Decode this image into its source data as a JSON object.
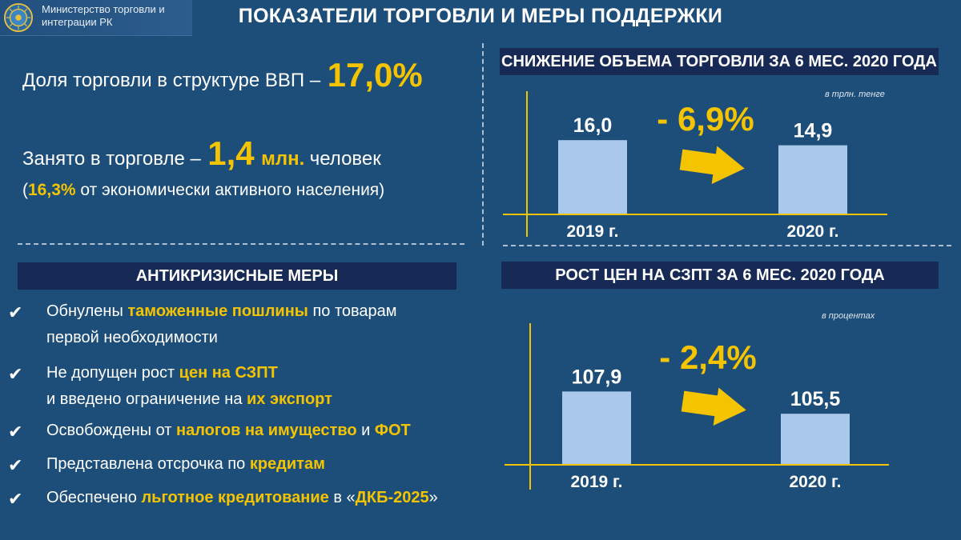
{
  "header": {
    "ministry": [
      "Министерство торговли и",
      "интеграции РК"
    ],
    "title": "ПОКАЗАТЕЛИ ТОРГОВЛИ И МЕРЫ ПОДДЕРЖКИ"
  },
  "stats": {
    "share_label": "Доля торговли в структуре ВВП –",
    "share_value": "17,0%",
    "employed_label": "Занято в торговле –",
    "employed_value": "1,4",
    "employed_unit": "млн.",
    "employed_suffix": "человек",
    "employed_sub_open": "(",
    "employed_sub_pct": "16,3%",
    "employed_sub_rest": "от экономически активного населения)"
  },
  "measures": {
    "title": "АНТИКРИЗИСНЫЕ МЕРЫ",
    "check_glyph": "✔",
    "items": [
      {
        "lines": [
          [
            {
              "t": "Обнулены ",
              "hl": false
            },
            {
              "t": "таможенные пошлины",
              "hl": true
            },
            {
              "t": " по товарам",
              "hl": false
            }
          ],
          [
            {
              "t": "первой необходимости",
              "hl": false
            }
          ]
        ]
      },
      {
        "lines": [
          [
            {
              "t": "Не допущен рост ",
              "hl": false
            },
            {
              "t": "цен на СЗПТ",
              "hl": true
            }
          ],
          [
            {
              "t": "и введено ограничение на ",
              "hl": false
            },
            {
              "t": "их экспорт",
              "hl": true
            }
          ]
        ]
      },
      {
        "lines": [
          [
            {
              "t": "Освобождены от ",
              "hl": false
            },
            {
              "t": "налогов на имущество",
              "hl": true
            },
            {
              "t": " и ",
              "hl": false
            },
            {
              "t": "ФОТ",
              "hl": true
            }
          ]
        ]
      },
      {
        "lines": [
          [
            {
              "t": "Представлена отсрочка по ",
              "hl": false
            },
            {
              "t": "кредитам",
              "hl": true
            }
          ]
        ]
      },
      {
        "lines": [
          [
            {
              "t": "Обеспечено ",
              "hl": false
            },
            {
              "t": "льготное кредитование",
              "hl": true
            },
            {
              "t": " в «",
              "hl": false
            },
            {
              "t": "ДКБ-2025",
              "hl": true
            },
            {
              "t": "»",
              "hl": false
            }
          ]
        ]
      }
    ]
  },
  "colors": {
    "background": "#1d4e7a",
    "accent": "#f5c400",
    "bar": "#a9c8ea",
    "title_bar": "#162a55"
  },
  "chart_data": [
    {
      "type": "bar",
      "title": "СНИЖЕНИЕ ОБЪЕМА ТОРГОВЛИ ЗА 6 МЕС. 2020 ГОДА",
      "unit_note": "в трлн. тенге",
      "categories": [
        "2019 г.",
        "2020 г."
      ],
      "values": [
        16.0,
        14.9
      ],
      "value_labels": [
        "16,0",
        "14,9"
      ],
      "change_label": "- 6,9%",
      "ylim": [
        0,
        20
      ]
    },
    {
      "type": "bar",
      "title": "РОСТ ЦЕН НА СЗПТ ЗА 6 МЕС. 2020 ГОДА",
      "unit_note": "в процентах",
      "categories": [
        "2019 г.",
        "2020 г."
      ],
      "values": [
        107.9,
        105.5
      ],
      "value_labels": [
        "107,9",
        "105,5"
      ],
      "change_label": "- 2,4%",
      "ylim": [
        100,
        110
      ]
    }
  ]
}
